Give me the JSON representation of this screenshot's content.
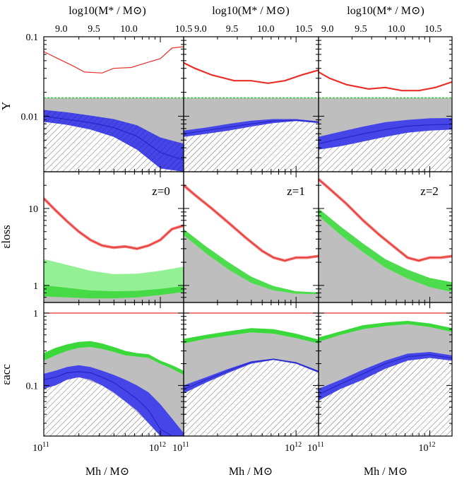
{
  "figure": {
    "top_axis_label": "log10(M* / M⊙)",
    "bottom_axis_label": "Mh / M⊙",
    "row_labels": [
      "Y",
      "εloss",
      "εacc"
    ]
  },
  "chart_data": {
    "type": "line",
    "title": "",
    "layout": "3x3 panel grid; columns = redshift, rows = quantity",
    "x": {
      "label": "Mh / M⊙",
      "scale": "log",
      "log_range": [
        11.0,
        12.2
      ],
      "tick_labels": [
        {
          "text": "10",
          "sup": "11",
          "log": 11.0
        },
        {
          "text": "10",
          "sup": "12",
          "log": 12.0
        }
      ]
    },
    "top_axis": {
      "label": "log10(M* / M⊙)",
      "columns": [
        {
          "ticks": [
            {
              "text": "9.0",
              "logMh": 11.15
            },
            {
              "text": "9.5",
              "logMh": 11.43
            },
            {
              "text": "10.0",
              "logMh": 11.73
            },
            {
              "text": "10.5",
              "logMh": 12.2
            }
          ]
        },
        {
          "ticks": [
            {
              "text": "9.0",
              "logMh": 11.15
            },
            {
              "text": "9.5",
              "logMh": 11.43
            },
            {
              "text": "10.0",
              "logMh": 11.73
            },
            {
              "text": "10.5",
              "logMh": 12.07
            }
          ]
        },
        {
          "ticks": [
            {
              "text": "9.0",
              "logMh": 11.08
            },
            {
              "text": "9.5",
              "logMh": 11.38
            },
            {
              "text": "10.0",
              "logMh": 11.7
            },
            {
              "text": "10.5",
              "logMh": 12.03
            }
          ]
        }
      ]
    },
    "columns": [
      {
        "redshift": "z=0"
      },
      {
        "redshift": "z=1"
      },
      {
        "redshift": "z=2"
      }
    ],
    "rows": [
      {
        "quantity": "Y",
        "ylabel": "Y",
        "yscale": "log",
        "ylim": [
          0.002,
          0.1
        ],
        "tick_labels": [
          {
            "text": "0.1",
            "value": 0.1
          },
          {
            "text": "0.01",
            "value": 0.01
          }
        ],
        "panels": [
          {
            "red_line": {
              "x": [
                11.0,
                11.1,
                11.25,
                11.35,
                11.5,
                11.6,
                11.75,
                11.9,
                12.0,
                12.1,
                12.2
              ],
              "y": [
                0.065,
                0.055,
                0.043,
                0.036,
                0.035,
                0.04,
                0.041,
                0.048,
                0.053,
                0.072,
                0.075
              ]
            },
            "green_line": {
              "value": 0.017
            },
            "gray_top": 0.017,
            "blue_band": {
              "x": [
                11.0,
                11.2,
                11.4,
                11.6,
                11.8,
                12.0,
                12.2
              ],
              "lo": [
                0.0085,
                0.0078,
                0.0068,
                0.0055,
                0.0038,
                0.0022,
                0.002
              ],
              "mid": [
                0.01,
                0.0091,
                0.0083,
                0.0072,
                0.0056,
                0.0035,
                0.0028
              ],
              "hi": [
                0.012,
                0.0112,
                0.0102,
                0.0092,
                0.0077,
                0.0054,
                0.0045
              ]
            }
          },
          {
            "red_line": {
              "x": [
                11.0,
                11.1,
                11.25,
                11.45,
                11.6,
                11.75,
                11.9,
                12.05,
                12.2
              ],
              "y": [
                0.047,
                0.04,
                0.033,
                0.028,
                0.028,
                0.026,
                0.028,
                0.033,
                0.038
              ]
            },
            "green_line": {
              "value": 0.017
            },
            "gray_top": 0.017,
            "blue_band": {
              "x": [
                11.0,
                11.2,
                11.4,
                11.6,
                11.8,
                12.0,
                12.2
              ],
              "lo": [
                0.0055,
                0.006,
                0.0066,
                0.0074,
                0.0082,
                0.0087,
                0.0082
              ],
              "mid": [
                0.006,
                0.0066,
                0.0073,
                0.008,
                0.0087,
                0.0089,
                0.0084
              ],
              "hi": [
                0.0066,
                0.0072,
                0.008,
                0.0088,
                0.0092,
                0.0092,
                0.0086
              ]
            }
          },
          {
            "red_line": {
              "x": [
                11.0,
                11.1,
                11.25,
                11.45,
                11.6,
                11.75,
                11.9,
                12.05,
                12.2
              ],
              "y": [
                0.036,
                0.03,
                0.025,
                0.022,
                0.023,
                0.021,
                0.021,
                0.023,
                0.027
              ]
            },
            "green_line": {
              "value": 0.017
            },
            "gray_top": 0.017,
            "blue_band": {
              "x": [
                11.0,
                11.2,
                11.4,
                11.6,
                11.8,
                12.0,
                12.2
              ],
              "lo": [
                0.0038,
                0.0042,
                0.0048,
                0.0055,
                0.0062,
                0.0066,
                0.0068
              ],
              "mid": [
                0.0045,
                0.0052,
                0.006,
                0.0068,
                0.0075,
                0.0078,
                0.0079
              ],
              "hi": [
                0.0055,
                0.0064,
                0.0074,
                0.0084,
                0.009,
                0.0094,
                0.0095
              ]
            }
          }
        ]
      },
      {
        "quantity": "εloss",
        "ylabel": "εloss",
        "yscale": "log",
        "ylim": [
          0.6,
          30
        ],
        "tick_labels": [
          {
            "text": "10",
            "value": 10
          },
          {
            "text": "1",
            "value": 1
          }
        ],
        "panels": [
          {
            "red_line": {
              "x": [
                11.0,
                11.1,
                11.2,
                11.3,
                11.4,
                11.5,
                11.6,
                11.7,
                11.8,
                11.9,
                12.0,
                12.1,
                12.2
              ],
              "y": [
                13.5,
                9.5,
                6.8,
                5.0,
                3.9,
                3.3,
                3.1,
                3.2,
                3.0,
                3.3,
                3.9,
                5.4,
                6.0
              ]
            },
            "green_band": {
              "x": [
                11.0,
                11.2,
                11.4,
                11.6,
                11.8,
                12.0,
                12.2
              ],
              "lo": [
                0.72,
                0.7,
                0.68,
                0.68,
                0.7,
                0.75,
                0.82
              ],
              "hi": [
                2.2,
                1.85,
                1.55,
                1.4,
                1.42,
                1.55,
                1.75
              ]
            },
            "gray_band": {
              "x": [
                11.0,
                11.2,
                11.4,
                11.6,
                11.8,
                12.0,
                12.2
              ],
              "hi": [
                1.0,
                0.93,
                0.86,
                0.84,
                0.85,
                0.9,
                0.98
              ]
            },
            "label": "z=0"
          },
          {
            "red_line": {
              "x": [
                11.0,
                11.1,
                11.25,
                11.4,
                11.55,
                11.7,
                11.8,
                11.9,
                12.0,
                12.1,
                12.2
              ],
              "y": [
                20.0,
                15.0,
                10.0,
                6.5,
                4.2,
                2.8,
                2.3,
                2.1,
                2.3,
                2.3,
                2.4
              ]
            },
            "green_band": {
              "x": [
                11.0,
                11.2,
                11.4,
                11.6,
                11.8,
                12.0,
                12.2
              ],
              "lo": [
                4.5,
                2.6,
                1.6,
                1.08,
                0.86,
                0.78,
                0.77
              ],
              "hi": [
                5.4,
                3.2,
                2.0,
                1.3,
                0.98,
                0.84,
                0.81
              ]
            },
            "gray_band": {
              "x": [
                11.0,
                11.2,
                11.4,
                11.6,
                11.8,
                12.0,
                12.2
              ],
              "hi": [
                4.5,
                2.6,
                1.6,
                1.08,
                0.86,
                0.78,
                0.77
              ]
            },
            "label": "z=1"
          },
          {
            "red_line": {
              "x": [
                11.0,
                11.1,
                11.25,
                11.4,
                11.55,
                11.7,
                11.8,
                11.9,
                12.0,
                12.1,
                12.2
              ],
              "y": [
                24.0,
                18.0,
                11.5,
                7.0,
                4.5,
                3.0,
                2.3,
                2.1,
                2.3,
                2.3,
                2.4
              ]
            },
            "green_band": {
              "x": [
                11.0,
                11.2,
                11.4,
                11.6,
                11.8,
                12.0,
                12.2
              ],
              "lo": [
                8.0,
                4.5,
                2.7,
                1.7,
                1.22,
                0.95,
                0.82
              ],
              "hi": [
                10.0,
                5.8,
                3.5,
                2.2,
                1.6,
                1.25,
                1.1
              ]
            },
            "gray_band": {
              "x": [
                11.0,
                11.2,
                11.4,
                11.6,
                11.8,
                12.0,
                12.2
              ],
              "hi": [
                8.0,
                4.5,
                2.7,
                1.7,
                1.22,
                0.95,
                0.82
              ]
            },
            "label": "z=2"
          }
        ]
      },
      {
        "quantity": "εacc",
        "ylabel": "εacc",
        "yscale": "log",
        "ylim": [
          0.02,
          1.4
        ],
        "tick_labels": [
          {
            "text": "1",
            "value": 1
          },
          {
            "text": "0.1",
            "value": 0.1
          }
        ],
        "panels": [
          {
            "red_line": {
              "value": 1.0
            },
            "green_band": {
              "x": [
                11.0,
                11.1,
                11.2,
                11.3,
                11.4,
                11.5,
                11.6,
                11.7,
                11.8,
                11.9,
                12.0,
                12.1,
                12.2
              ],
              "lo": [
                0.22,
                0.26,
                0.3,
                0.33,
                0.34,
                0.32,
                0.29,
                0.26,
                0.25,
                0.24,
                0.2,
                0.17,
                0.14
              ],
              "hi": [
                0.28,
                0.33,
                0.37,
                0.4,
                0.41,
                0.38,
                0.34,
                0.3,
                0.28,
                0.27,
                0.22,
                0.19,
                0.16
              ]
            },
            "blue_band": {
              "x": [
                11.0,
                11.1,
                11.2,
                11.3,
                11.4,
                11.5,
                11.6,
                11.7,
                11.8,
                11.9,
                12.0,
                12.1,
                12.2
              ],
              "lo": [
                0.09,
                0.1,
                0.12,
                0.13,
                0.12,
                0.1,
                0.08,
                0.06,
                0.045,
                0.03,
                0.02,
                0.02,
                0.02
              ],
              "mid": [
                0.12,
                0.13,
                0.15,
                0.155,
                0.15,
                0.13,
                0.11,
                0.085,
                0.065,
                0.045,
                0.025,
                0.02,
                0.02
              ],
              "hi": [
                0.145,
                0.16,
                0.18,
                0.19,
                0.18,
                0.16,
                0.14,
                0.12,
                0.1,
                0.08,
                0.055,
                0.035,
                0.022
              ]
            },
            "hatch_top": {
              "x": [
                11.0,
                11.2,
                11.3,
                11.5,
                11.7,
                11.9,
                12.0,
                12.1,
                12.2
              ],
              "y": [
                0.09,
                0.12,
                0.13,
                0.1,
                0.06,
                0.03,
                0.02,
                0.02,
                0.02
              ]
            }
          },
          {
            "red_line": {
              "value": 1.0
            },
            "green_band": {
              "x": [
                11.0,
                11.2,
                11.4,
                11.6,
                11.8,
                12.0,
                12.2
              ],
              "lo": [
                0.38,
                0.44,
                0.49,
                0.54,
                0.52,
                0.45,
                0.38
              ],
              "hi": [
                0.44,
                0.5,
                0.56,
                0.62,
                0.6,
                0.52,
                0.43
              ]
            },
            "blue_band": {
              "x": [
                11.0,
                11.2,
                11.4,
                11.6,
                11.8,
                12.0,
                12.2
              ],
              "lo": [
                0.078,
                0.11,
                0.15,
                0.2,
                0.225,
                0.2,
                0.15
              ],
              "mid": [
                0.088,
                0.12,
                0.16,
                0.21,
                0.23,
                0.205,
                0.155
              ],
              "hi": [
                0.1,
                0.13,
                0.17,
                0.215,
                0.235,
                0.21,
                0.16
              ]
            },
            "hatch_top": {
              "x": [
                11.0,
                11.2,
                11.4,
                11.6,
                11.8,
                12.0,
                12.2
              ],
              "y": [
                0.078,
                0.11,
                0.15,
                0.2,
                0.225,
                0.2,
                0.15
              ]
            }
          },
          {
            "red_line": {
              "value": 1.0
            },
            "green_band": {
              "x": [
                11.0,
                11.2,
                11.4,
                11.6,
                11.8,
                12.0,
                12.2
              ],
              "lo": [
                0.4,
                0.5,
                0.6,
                0.66,
                0.7,
                0.64,
                0.55
              ],
              "hi": [
                0.46,
                0.56,
                0.68,
                0.74,
                0.78,
                0.72,
                0.62
              ]
            },
            "blue_band": {
              "x": [
                11.0,
                11.2,
                11.4,
                11.6,
                11.8,
                12.0,
                12.2
              ],
              "lo": [
                0.062,
                0.09,
                0.12,
                0.17,
                0.22,
                0.24,
                0.22
              ],
              "mid": [
                0.075,
                0.105,
                0.145,
                0.2,
                0.25,
                0.265,
                0.24
              ],
              "hi": [
                0.09,
                0.12,
                0.165,
                0.22,
                0.275,
                0.29,
                0.26
              ]
            },
            "hatch_top": {
              "x": [
                11.0,
                11.2,
                11.4,
                11.6,
                11.8,
                12.0,
                12.2
              ],
              "y": [
                0.062,
                0.09,
                0.12,
                0.17,
                0.22,
                0.24,
                0.22
              ]
            }
          }
        ]
      }
    ],
    "colors": {
      "red": "#e8302a",
      "red_fill": "#f08080",
      "green": "#2ec82e",
      "green_fill": "#3ad83a",
      "green_light": "#88ee88",
      "blue": "#2727c8",
      "blue_fill": "#4545e8",
      "gray": "#bebebe",
      "hatch": "#555555"
    }
  }
}
